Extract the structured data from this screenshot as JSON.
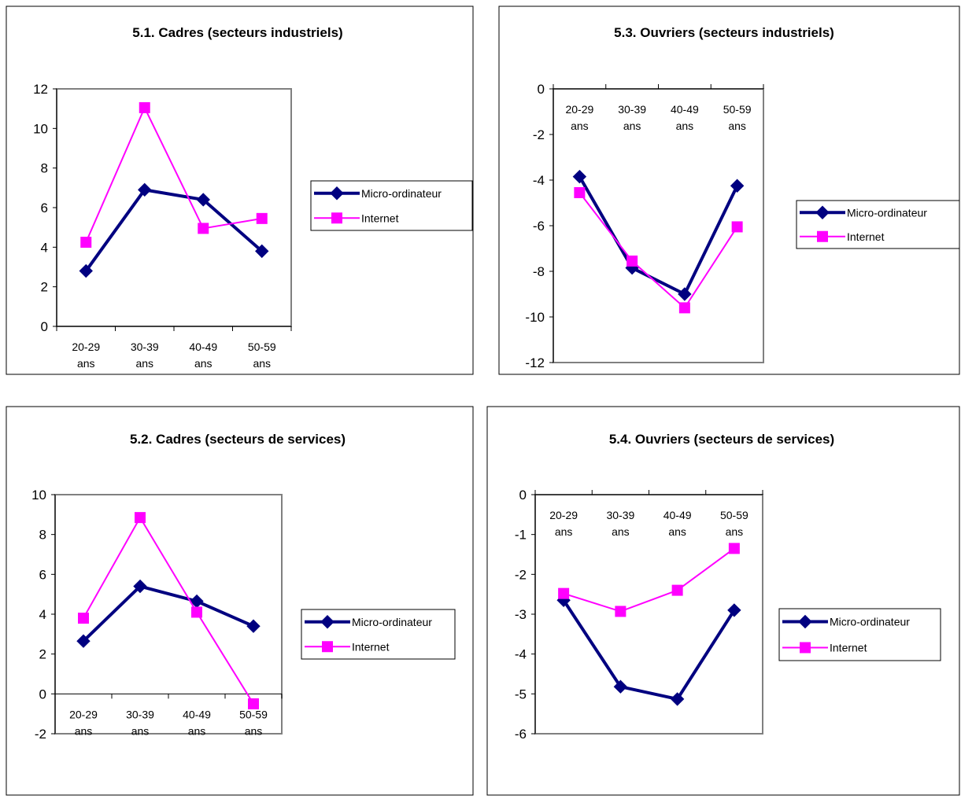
{
  "chart_data": [
    {
      "type": "line",
      "title": "5.1. Cadres (secteurs industriels)",
      "categories": [
        "20-29 ans",
        "30-39 ans",
        "40-49 ans",
        "50-59 ans"
      ],
      "category_lines": [
        [
          "20-29",
          "ans"
        ],
        [
          "30-39",
          "ans"
        ],
        [
          "40-49",
          "ans"
        ],
        [
          "50-59",
          "ans"
        ]
      ],
      "ylim": [
        0,
        12
      ],
      "yticks": [
        "0",
        "2",
        "4",
        "6",
        "8",
        "10",
        "12"
      ],
      "category_labels_position": "bottom",
      "grid": false,
      "legend_position": "right",
      "series": [
        {
          "name": "Micro-ordinateur",
          "values": [
            2.8,
            6.9,
            6.4,
            3.8
          ],
          "color": "#000080",
          "marker": "diamond"
        },
        {
          "name": "Internet",
          "values": [
            4.25,
            11.05,
            4.95,
            5.45
          ],
          "color": "#ff00ff",
          "marker": "square"
        }
      ]
    },
    {
      "type": "line",
      "title": "5.3. Ouvriers (secteurs industriels)",
      "categories": [
        "20-29 ans",
        "30-39 ans",
        "40-49 ans",
        "50-59 ans"
      ],
      "category_lines": [
        [
          "20-29",
          "ans"
        ],
        [
          "30-39",
          "ans"
        ],
        [
          "40-49",
          "ans"
        ],
        [
          "50-59",
          "ans"
        ]
      ],
      "ylim": [
        -12,
        0
      ],
      "yticks": [
        "-12",
        "-10",
        "-8",
        "-6",
        "-4",
        "-2",
        "0"
      ],
      "category_labels_position": "top",
      "grid": false,
      "legend_position": "right",
      "series": [
        {
          "name": "Micro-ordinateur",
          "values": [
            -3.85,
            -7.85,
            -9.0,
            -4.25
          ],
          "color": "#000080",
          "marker": "diamond"
        },
        {
          "name": "Internet",
          "values": [
            -4.55,
            -7.55,
            -9.6,
            -6.05
          ],
          "color": "#ff00ff",
          "marker": "square"
        }
      ]
    },
    {
      "type": "line",
      "title": "5.2. Cadres (secteurs de services)",
      "categories": [
        "20-29 ans",
        "30-39 ans",
        "40-49 ans",
        "50-59 ans"
      ],
      "category_lines": [
        [
          "20-29",
          "ans"
        ],
        [
          "30-39",
          "ans"
        ],
        [
          "40-49",
          "ans"
        ],
        [
          "50-59",
          "ans"
        ]
      ],
      "ylim": [
        -2,
        10
      ],
      "yticks": [
        "-2",
        "0",
        "2",
        "4",
        "6",
        "8",
        "10"
      ],
      "category_labels_position": "axis",
      "grid": false,
      "legend_position": "right",
      "series": [
        {
          "name": "Micro-ordinateur",
          "values": [
            2.65,
            5.4,
            4.65,
            3.4
          ],
          "color": "#000080",
          "marker": "diamond"
        },
        {
          "name": "Internet",
          "values": [
            3.8,
            8.85,
            4.1,
            -0.5
          ],
          "color": "#ff00ff",
          "marker": "square"
        }
      ]
    },
    {
      "type": "line",
      "title": "5.4. Ouvriers (secteurs de services)",
      "categories": [
        "20-29 ans",
        "30-39 ans",
        "40-49 ans",
        "50-59 ans"
      ],
      "category_lines": [
        [
          "20-29",
          "ans"
        ],
        [
          "30-39",
          "ans"
        ],
        [
          "40-49",
          "ans"
        ],
        [
          "50-59",
          "ans"
        ]
      ],
      "ylim": [
        -6,
        0
      ],
      "yticks": [
        "-6",
        "-5",
        "-4",
        "-3",
        "-2",
        "-1",
        "0"
      ],
      "category_labels_position": "top",
      "grid": false,
      "legend_position": "right",
      "series": [
        {
          "name": "Micro-ordinateur",
          "values": [
            -2.65,
            -4.82,
            -5.13,
            -2.9
          ],
          "color": "#000080",
          "marker": "diamond"
        },
        {
          "name": "Internet",
          "values": [
            -2.48,
            -2.93,
            -2.4,
            -1.35
          ],
          "color": "#ff00ff",
          "marker": "square"
        }
      ]
    }
  ]
}
